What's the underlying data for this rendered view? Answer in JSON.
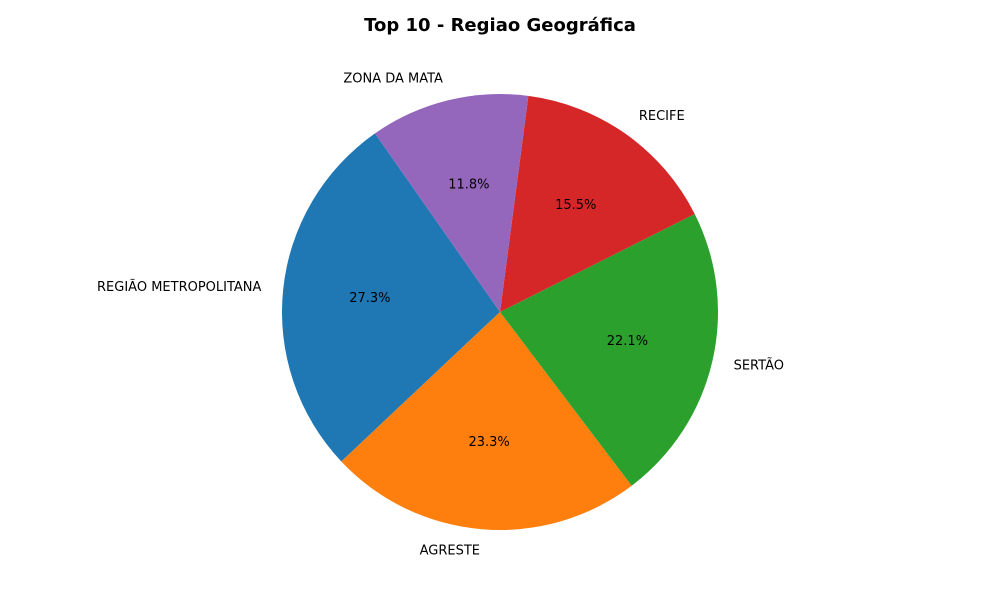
{
  "chart_data": {
    "type": "pie",
    "title": "Top 10 - Regiao Geográfica",
    "slices": [
      {
        "label": "REGIÃO METROPOLITANA",
        "value": 27.3,
        "pct_label": "27.3%",
        "color": "#1f77b4"
      },
      {
        "label": "AGRESTE",
        "value": 23.3,
        "pct_label": "23.3%",
        "color": "#ff7f0e"
      },
      {
        "label": "SERTÃO",
        "value": 22.1,
        "pct_label": "22.1%",
        "color": "#2ca02c"
      },
      {
        "label": "RECIFE",
        "value": 15.5,
        "pct_label": "15.5%",
        "color": "#d62728"
      },
      {
        "label": "ZONA DA MATA",
        "value": 11.8,
        "pct_label": "11.8%",
        "color": "#9467bd"
      }
    ],
    "legend": "none"
  }
}
